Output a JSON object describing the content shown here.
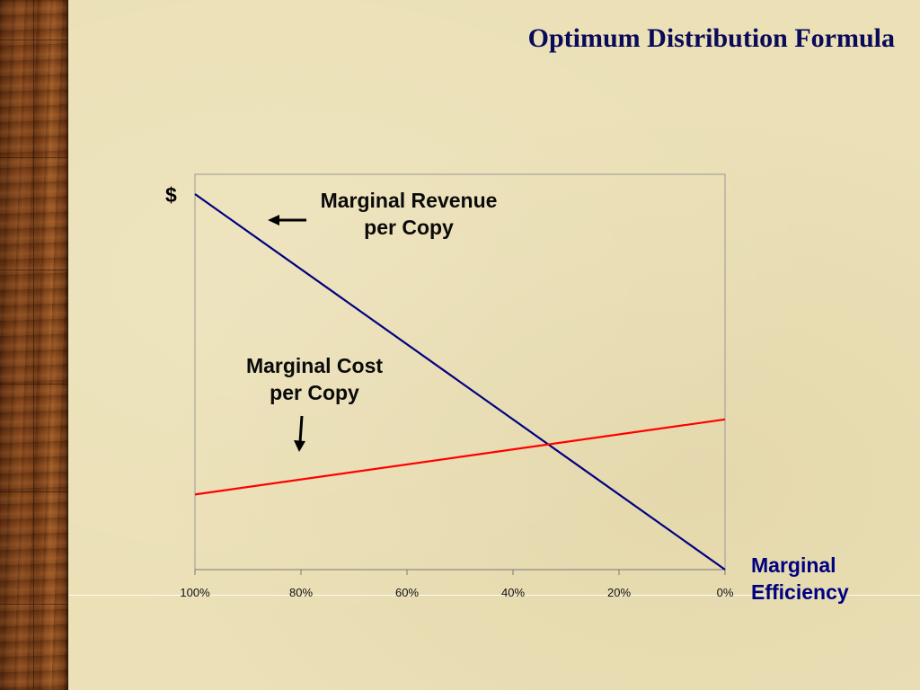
{
  "slide": {
    "title": "Optimum Distribution Formula"
  },
  "annotations": {
    "revenue_line1": "Marginal Revenue",
    "revenue_line2": "per Copy",
    "cost_line1": "Marginal Cost",
    "cost_line2": "per Copy"
  },
  "chart_data": {
    "type": "line",
    "title": "",
    "ylabel": "$",
    "xlabel_line1": "Marginal",
    "xlabel_line2": "Efficiency",
    "x_ticks": [
      "100%",
      "80%",
      "60%",
      "40%",
      "20%",
      "0%"
    ],
    "x_values": [
      100,
      80,
      60,
      40,
      20,
      0
    ],
    "xlim": [
      100,
      0
    ],
    "ylim": [
      0,
      100
    ],
    "grid": false,
    "series": [
      {
        "name": "Marginal Revenue per Copy",
        "color": "#000080",
        "x": [
          100,
          0
        ],
        "y": [
          95,
          0
        ]
      },
      {
        "name": "Marginal Cost per Copy",
        "color": "#ff0000",
        "x": [
          100,
          0
        ],
        "y": [
          19,
          38
        ]
      }
    ]
  },
  "colors": {
    "title": "#0a0a5a",
    "axis_label": "#000080",
    "revenue_line": "#000080",
    "cost_line": "#ff0000",
    "background": "#ebe0b6",
    "wood": "#7a3e18"
  },
  "icons": {
    "revenue_arrow": "arrow-left-icon",
    "cost_arrow": "arrow-down-icon"
  }
}
